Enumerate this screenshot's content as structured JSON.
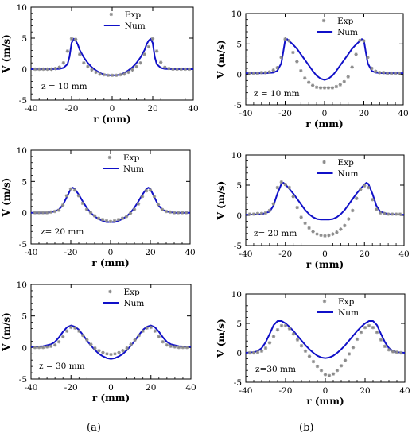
{
  "colors": {
    "exp": "#8a8a8a",
    "num": "#1010c8",
    "axis": "#000000"
  },
  "figure_labels": {
    "a": "(a)",
    "b": "(b)"
  },
  "chart_data": [
    {
      "id": "a1",
      "type": "line",
      "note": "z = 10 mm",
      "xlabel": "r (mm)",
      "ylabel": "V (m/s)",
      "xlim": [
        -40,
        40
      ],
      "ylim": [
        -5,
        10
      ],
      "xticks": [
        -40,
        -20,
        0,
        20,
        40
      ],
      "yticks": [
        -5,
        0,
        5,
        10
      ],
      "legend": [
        "Exp",
        "Num"
      ],
      "series": [
        {
          "name": "Exp",
          "kind": "scatter",
          "x": [
            -38,
            -36,
            -34,
            -32,
            -30,
            -28,
            -26,
            -24,
            -22,
            -20,
            -18,
            -16,
            -14,
            -12,
            -10,
            -8,
            -6,
            -4,
            -2,
            0,
            2,
            4,
            6,
            8,
            10,
            12,
            14,
            16,
            18,
            20,
            22,
            24,
            26,
            28,
            30,
            32,
            34,
            36,
            38
          ],
          "y": [
            0,
            0,
            0,
            0,
            0,
            0.1,
            0.3,
            1.0,
            2.9,
            4.9,
            4.8,
            2.4,
            1.0,
            0.4,
            -0.1,
            -0.5,
            -0.8,
            -0.9,
            -1.0,
            -1.0,
            -1.0,
            -0.9,
            -0.8,
            -0.5,
            -0.1,
            0.4,
            1.0,
            2.4,
            3.6,
            4.9,
            2.9,
            1.1,
            0.3,
            0.1,
            0,
            0,
            0,
            0,
            0
          ]
        },
        {
          "name": "Num",
          "kind": "line",
          "x": [
            -40,
            -30,
            -26,
            -24,
            -22,
            -21,
            -20,
            -19,
            -18,
            -17,
            -16,
            -14,
            -12,
            -10,
            -8,
            -6,
            -4,
            -2,
            0,
            2,
            4,
            6,
            8,
            10,
            12,
            14,
            16,
            17,
            18,
            19,
            20,
            21,
            22,
            24,
            26,
            30,
            40
          ],
          "y": [
            0,
            0,
            0.05,
            0.2,
            0.8,
            2.0,
            4.2,
            4.9,
            4.6,
            4.0,
            3.1,
            1.9,
            1.0,
            0.3,
            -0.2,
            -0.6,
            -0.9,
            -1.0,
            -1.0,
            -1.0,
            -0.9,
            -0.6,
            -0.2,
            0.3,
            1.0,
            1.9,
            3.1,
            4.0,
            4.6,
            4.9,
            4.2,
            2.0,
            0.8,
            0.2,
            0.05,
            0,
            0
          ]
        }
      ]
    },
    {
      "id": "b1",
      "type": "line",
      "note": "z = 10 mm",
      "xlabel": "r (mm)",
      "ylabel": "V (m/s)",
      "xlim": [
        -40,
        40
      ],
      "ylim": [
        -5,
        10
      ],
      "xticks": [
        -40,
        -20,
        0,
        20,
        40
      ],
      "yticks": [
        -5,
        0,
        5,
        10
      ],
      "legend": [
        "Exp",
        "Num"
      ],
      "series": [
        {
          "name": "Exp",
          "kind": "scatter",
          "x": [
            -38,
            -36,
            -34,
            -32,
            -30,
            -28,
            -26,
            -24,
            -22,
            -20,
            -18,
            -16,
            -14,
            -12,
            -10,
            -8,
            -6,
            -4,
            -2,
            0,
            2,
            4,
            6,
            8,
            10,
            12,
            14,
            16,
            18,
            20,
            22,
            24,
            26,
            28,
            30,
            32,
            34,
            36,
            38
          ],
          "y": [
            0.2,
            0.2,
            0.2,
            0.3,
            0.3,
            0.4,
            0.7,
            1.1,
            2.8,
            5.8,
            5.5,
            3.6,
            2.1,
            0.6,
            -0.6,
            -1.3,
            -1.8,
            -2.1,
            -2.2,
            -2.2,
            -2.2,
            -2.2,
            -2.0,
            -1.7,
            -1.2,
            -0.4,
            1.2,
            3.3,
            5.6,
            5.5,
            2.8,
            1.0,
            0.5,
            0.3,
            0.3,
            0.2,
            0.2,
            0.2,
            0.2
          ]
        },
        {
          "name": "Num",
          "kind": "line",
          "x": [
            -40,
            -30,
            -26,
            -24,
            -22,
            -21,
            -20,
            -19,
            -18,
            -16,
            -14,
            -12,
            -10,
            -8,
            -6,
            -4,
            -2,
            0,
            2,
            4,
            6,
            8,
            10,
            12,
            14,
            16,
            18,
            19,
            20,
            21,
            22,
            24,
            26,
            30,
            40
          ],
          "y": [
            0.2,
            0.2,
            0.3,
            0.6,
            1.8,
            3.6,
            5.6,
            5.8,
            5.5,
            4.9,
            4.2,
            3.3,
            2.4,
            1.5,
            0.6,
            -0.2,
            -0.7,
            -0.9,
            -0.7,
            -0.2,
            0.6,
            1.5,
            2.4,
            3.3,
            4.2,
            4.9,
            5.5,
            5.8,
            5.6,
            3.6,
            1.8,
            0.6,
            0.3,
            0.2,
            0.2
          ]
        }
      ]
    },
    {
      "id": "a2",
      "type": "line",
      "note": "z= 20 mm",
      "xlabel": "r (mm)",
      "ylabel": "V (m/s)",
      "xlim": [
        -40,
        40
      ],
      "ylim": [
        -5,
        10
      ],
      "xticks": [
        -40,
        -20,
        0,
        20,
        40
      ],
      "yticks": [
        -5,
        0,
        5,
        10
      ],
      "legend": [
        "Exp",
        "Num"
      ],
      "series": [
        {
          "name": "Exp",
          "kind": "scatter",
          "x": [
            -38,
            -36,
            -34,
            -32,
            -30,
            -28,
            -26,
            -24,
            -22,
            -20,
            -18,
            -16,
            -14,
            -12,
            -10,
            -8,
            -6,
            -4,
            -2,
            0,
            2,
            4,
            6,
            8,
            10,
            12,
            14,
            16,
            18,
            20,
            22,
            24,
            26,
            28,
            30,
            32,
            34,
            36,
            38
          ],
          "y": [
            0,
            0,
            0,
            0,
            0.1,
            0.2,
            0.4,
            1.2,
            2.7,
            3.8,
            3.6,
            2.7,
            1.5,
            0.5,
            0,
            -0.5,
            -0.9,
            -1.1,
            -1.3,
            -1.4,
            -1.3,
            -1.1,
            -0.9,
            -0.6,
            -0.1,
            0.5,
            1.4,
            2.6,
            3.5,
            3.6,
            2.6,
            1.3,
            0.5,
            0.2,
            0.1,
            0,
            0,
            0,
            0
          ]
        },
        {
          "name": "Num",
          "kind": "line",
          "x": [
            -40,
            -32,
            -28,
            -26,
            -24,
            -22,
            -20,
            -19,
            -18,
            -16,
            -14,
            -12,
            -10,
            -8,
            -6,
            -4,
            -2,
            0,
            2,
            4,
            6,
            8,
            10,
            12,
            14,
            16,
            18,
            19,
            20,
            22,
            24,
            26,
            28,
            32,
            40
          ],
          "y": [
            0,
            0,
            0.2,
            0.5,
            1.2,
            2.5,
            3.8,
            4.0,
            3.8,
            2.9,
            1.8,
            0.8,
            0,
            -0.6,
            -1.0,
            -1.3,
            -1.5,
            -1.5,
            -1.5,
            -1.3,
            -1.0,
            -0.6,
            0,
            0.8,
            1.8,
            2.9,
            3.8,
            4.0,
            3.8,
            2.5,
            1.2,
            0.5,
            0.2,
            0,
            0
          ]
        }
      ]
    },
    {
      "id": "b2",
      "type": "line",
      "note": "z= 20 mm",
      "xlabel": "r (mm)",
      "ylabel": "V (m/s)",
      "xlim": [
        -40,
        40
      ],
      "ylim": [
        -5,
        10
      ],
      "xticks": [
        -40,
        -20,
        0,
        20,
        40
      ],
      "yticks": [
        -5,
        0,
        5,
        10
      ],
      "legend": [
        "Exp",
        "Num"
      ],
      "series": [
        {
          "name": "Exp",
          "kind": "scatter",
          "x": [
            -38,
            -36,
            -34,
            -32,
            -30,
            -28,
            -26,
            -24,
            -22,
            -20,
            -18,
            -16,
            -14,
            -12,
            -10,
            -8,
            -6,
            -4,
            -2,
            0,
            2,
            4,
            6,
            8,
            10,
            12,
            14,
            16,
            18,
            20,
            22,
            24,
            26,
            28,
            30,
            32,
            34,
            36,
            38
          ],
          "y": [
            0.2,
            0.2,
            0.3,
            0.3,
            0.4,
            0.8,
            1.9,
            4.6,
            5.5,
            5.1,
            4.6,
            3.1,
            1.3,
            -0.3,
            -1.3,
            -2.1,
            -2.7,
            -3.1,
            -3.3,
            -3.4,
            -3.3,
            -3.1,
            -2.8,
            -2.3,
            -1.7,
            -0.6,
            0.8,
            2.8,
            4.3,
            4.9,
            4.6,
            2.6,
            1.0,
            0.4,
            0.3,
            0.2,
            0.2,
            0.2,
            0.2
          ]
        },
        {
          "name": "Num",
          "kind": "line",
          "x": [
            -40,
            -32,
            -28,
            -26,
            -24,
            -22,
            -21,
            -20,
            -18,
            -16,
            -14,
            -12,
            -10,
            -8,
            -6,
            -4,
            -2,
            0,
            2,
            4,
            6,
            8,
            10,
            12,
            14,
            16,
            18,
            20,
            21,
            22,
            24,
            26,
            28,
            32,
            40
          ],
          "y": [
            0.1,
            0.2,
            0.6,
            1.6,
            3.6,
            5.2,
            5.4,
            5.1,
            4.4,
            3.6,
            2.7,
            1.8,
            0.9,
            0.2,
            -0.3,
            -0.6,
            -0.7,
            -0.7,
            -0.7,
            -0.6,
            -0.3,
            0.2,
            0.9,
            1.8,
            2.7,
            3.6,
            4.4,
            5.1,
            5.4,
            5.2,
            3.6,
            1.6,
            0.6,
            0.2,
            0.1
          ]
        }
      ]
    },
    {
      "id": "a3",
      "type": "line",
      "note": "z = 30 mm",
      "xlabel": "r (mm)",
      "ylabel": "V (m/s)",
      "xlim": [
        -40,
        40
      ],
      "ylim": [
        -5,
        10
      ],
      "xticks": [
        -40,
        -20,
        0,
        20,
        40
      ],
      "yticks": [
        -5,
        0,
        5,
        10
      ],
      "legend": [
        "Exp",
        "Num"
      ],
      "series": [
        {
          "name": "Exp",
          "kind": "scatter",
          "x": [
            -38,
            -36,
            -34,
            -32,
            -30,
            -28,
            -26,
            -24,
            -22,
            -20,
            -18,
            -16,
            -14,
            -12,
            -10,
            -8,
            -6,
            -4,
            -2,
            0,
            2,
            4,
            6,
            8,
            10,
            12,
            14,
            16,
            18,
            20,
            22,
            24,
            26,
            28,
            30,
            32,
            34,
            36,
            38
          ],
          "y": [
            0,
            0,
            0,
            0.1,
            0.2,
            0.4,
            0.9,
            1.7,
            2.6,
            3.2,
            3.1,
            2.6,
            1.9,
            1.2,
            0.5,
            -0.1,
            -0.5,
            -0.8,
            -1.0,
            -1.1,
            -1.0,
            -0.8,
            -0.5,
            -0.1,
            0.5,
            1.2,
            1.9,
            2.6,
            3.1,
            3.2,
            2.6,
            1.7,
            0.9,
            0.4,
            0.2,
            0.1,
            0,
            0,
            0
          ]
        },
        {
          "name": "Num",
          "kind": "line",
          "x": [
            -40,
            -34,
            -30,
            -28,
            -26,
            -24,
            -22,
            -20,
            -18,
            -16,
            -14,
            -12,
            -10,
            -8,
            -6,
            -4,
            -2,
            0,
            2,
            4,
            6,
            8,
            10,
            12,
            14,
            16,
            18,
            20,
            22,
            24,
            26,
            28,
            30,
            34,
            40
          ],
          "y": [
            0.1,
            0.2,
            0.5,
            0.9,
            1.6,
            2.5,
            3.2,
            3.5,
            3.3,
            2.8,
            2.0,
            1.1,
            0.3,
            -0.4,
            -1.0,
            -1.4,
            -1.7,
            -1.8,
            -1.7,
            -1.4,
            -1.0,
            -0.4,
            0.3,
            1.1,
            2.0,
            2.8,
            3.3,
            3.5,
            3.2,
            2.5,
            1.6,
            0.9,
            0.5,
            0.2,
            0.1
          ]
        }
      ]
    },
    {
      "id": "b3",
      "type": "line",
      "note": "z=30 mm",
      "xlabel": "r (mm)",
      "ylabel": "V (m/s)",
      "xlim": [
        -40,
        40
      ],
      "ylim": [
        -5,
        10
      ],
      "xticks": [
        -40,
        -20,
        0,
        20,
        40
      ],
      "yticks": [
        -5,
        0,
        5,
        10
      ],
      "legend": [
        "Exp",
        "Num"
      ],
      "series": [
        {
          "name": "Exp",
          "kind": "scatter",
          "x": [
            -38,
            -36,
            -34,
            -32,
            -30,
            -28,
            -26,
            -24,
            -22,
            -20,
            -18,
            -16,
            -14,
            -12,
            -10,
            -8,
            -6,
            -4,
            -2,
            0,
            2,
            4,
            6,
            8,
            10,
            12,
            14,
            16,
            18,
            20,
            22,
            24,
            26,
            28,
            30,
            32,
            34,
            36,
            38
          ],
          "y": [
            0,
            0,
            0.1,
            0.3,
            0.8,
            1.7,
            2.8,
            3.9,
            4.6,
            4.6,
            4.1,
            3.2,
            2.2,
            1.2,
            0.3,
            -0.6,
            -1.5,
            -2.3,
            -3.0,
            -3.7,
            -3.9,
            -3.6,
            -3.0,
            -2.2,
            -1.3,
            -0.2,
            0.9,
            2.3,
            3.5,
            4.3,
            4.6,
            4.3,
            3.5,
            2.2,
            1.1,
            0.5,
            0.2,
            0.1,
            0
          ]
        },
        {
          "name": "Num",
          "kind": "line",
          "x": [
            -40,
            -36,
            -34,
            -32,
            -30,
            -28,
            -26,
            -24,
            -22,
            -20,
            -18,
            -16,
            -14,
            -12,
            -10,
            -8,
            -6,
            -4,
            -2,
            0,
            2,
            4,
            6,
            8,
            10,
            12,
            14,
            16,
            18,
            20,
            22,
            24,
            26,
            28,
            30,
            32,
            34,
            36,
            40
          ],
          "y": [
            0,
            0.1,
            0.3,
            0.8,
            1.8,
            3.2,
            4.7,
            5.4,
            5.4,
            5.0,
            4.4,
            3.7,
            2.9,
            2.1,
            1.3,
            0.6,
            0,
            -0.5,
            -0.8,
            -0.9,
            -0.8,
            -0.5,
            0,
            0.6,
            1.3,
            2.1,
            2.9,
            3.7,
            4.4,
            5.0,
            5.4,
            5.4,
            4.7,
            3.2,
            1.8,
            0.8,
            0.3,
            0.1,
            0
          ]
        }
      ]
    }
  ]
}
